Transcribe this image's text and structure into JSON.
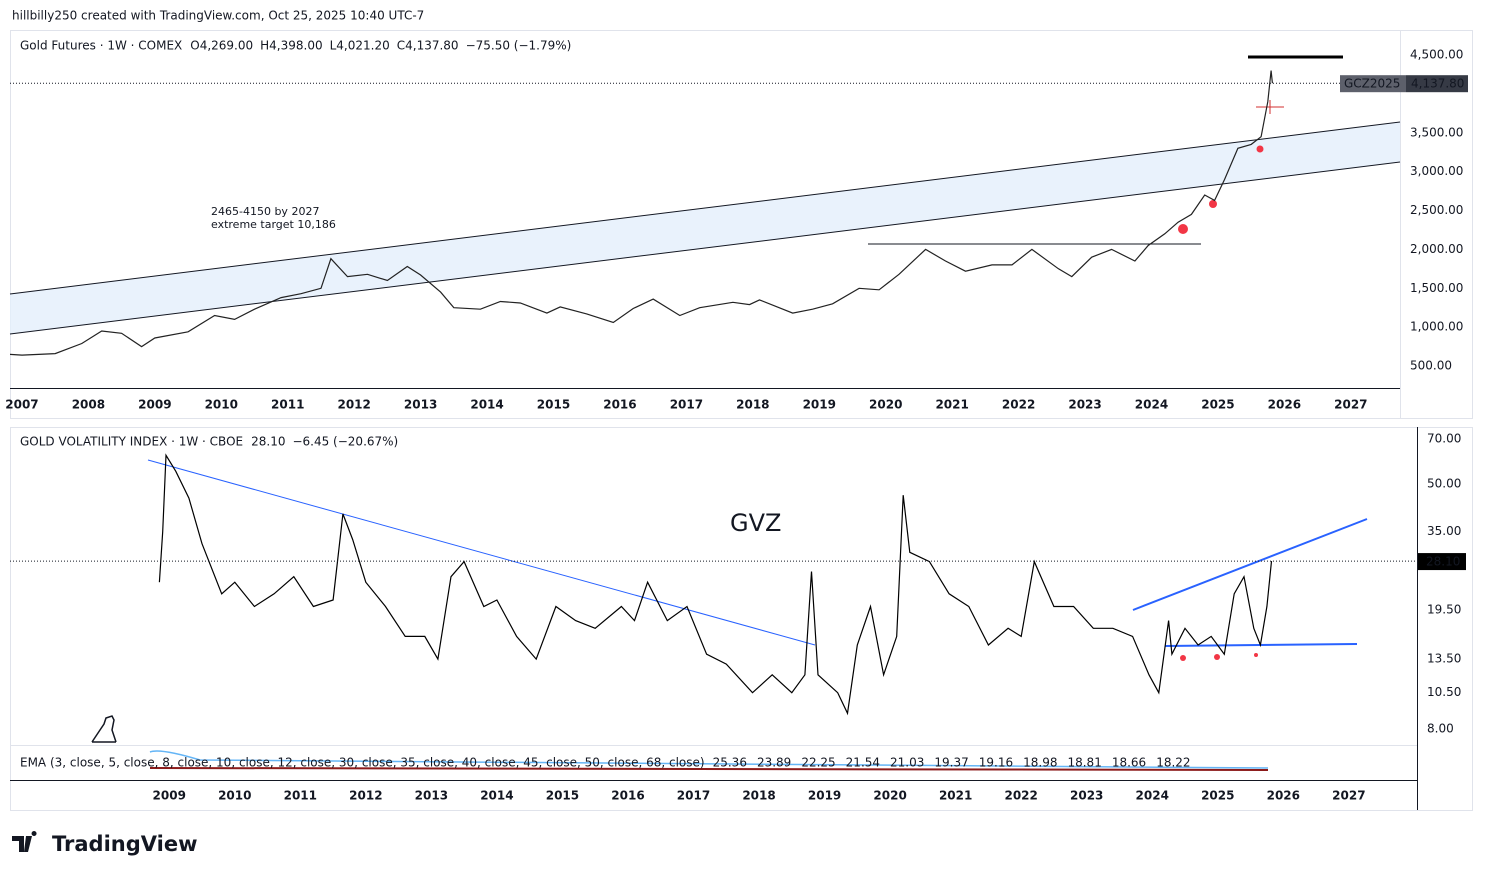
{
  "header": {
    "author_line": "hillbilly250 created with TradingView.com, Oct 25, 2025 10:40 UTC-7",
    "brand": "TradingView"
  },
  "chart_data": [
    {
      "type": "line",
      "title": "Gold Futures · 1W · COMEX",
      "legend_values": [
        "O4,269.00",
        "H4,398.00",
        "L4,021.20",
        "C4,137.80",
        "−75.50 (−1.79%)"
      ],
      "color": "#222222",
      "x": [
        2006.8,
        2007.0,
        2007.5,
        2007.9,
        2008.2,
        2008.5,
        2008.8,
        2009.0,
        2009.5,
        2009.9,
        2010.2,
        2010.5,
        2010.9,
        2011.2,
        2011.5,
        2011.65,
        2011.9,
        2012.2,
        2012.5,
        2012.8,
        2013.0,
        2013.3,
        2013.5,
        2013.9,
        2014.2,
        2014.5,
        2014.9,
        2015.1,
        2015.5,
        2015.9,
        2016.2,
        2016.5,
        2016.9,
        2017.2,
        2017.7,
        2017.95,
        2018.1,
        2018.6,
        2018.9,
        2019.2,
        2019.6,
        2019.9,
        2020.2,
        2020.6,
        2020.9,
        2021.2,
        2021.6,
        2021.9,
        2022.2,
        2022.6,
        2022.8,
        2023.1,
        2023.4,
        2023.75,
        2023.95,
        2024.2,
        2024.4,
        2024.6,
        2024.8,
        2024.95,
        2025.1,
        2025.3,
        2025.5,
        2025.65,
        2025.75,
        2025.8,
        2025.82
      ],
      "values": [
        650,
        640,
        660,
        790,
        950,
        920,
        750,
        860,
        940,
        1150,
        1100,
        1230,
        1380,
        1430,
        1500,
        1880,
        1650,
        1680,
        1600,
        1780,
        1670,
        1450,
        1250,
        1230,
        1330,
        1310,
        1180,
        1260,
        1170,
        1060,
        1240,
        1360,
        1150,
        1250,
        1320,
        1290,
        1350,
        1180,
        1230,
        1300,
        1500,
        1480,
        1680,
        2000,
        1850,
        1720,
        1800,
        1800,
        2000,
        1750,
        1650,
        1900,
        2000,
        1850,
        2050,
        2200,
        2350,
        2450,
        2700,
        2630,
        2900,
        3300,
        3350,
        3450,
        3900,
        4300,
        4137.8
      ],
      "xlim": [
        2006.82,
        2027.74
      ],
      "xticks": [
        2007,
        2008,
        2009,
        2010,
        2011,
        2012,
        2013,
        2014,
        2015,
        2016,
        2017,
        2018,
        2019,
        2020,
        2021,
        2022,
        2023,
        2024,
        2025,
        2026,
        2027
      ],
      "ylim": [
        217,
        4822
      ],
      "yticks": [
        {
          "value": 500,
          "label": "500.00"
        },
        {
          "value": 1000,
          "label": "1,000.00"
        },
        {
          "value": 1500,
          "label": "1,500.00"
        },
        {
          "value": 2000,
          "label": "2,000.00"
        },
        {
          "value": 2500,
          "label": "2,500.00"
        },
        {
          "value": 3000,
          "label": "3,000.00"
        },
        {
          "value": 3500,
          "label": "3,500.00"
        },
        {
          "value": 4500,
          "label": "4,500.00"
        }
      ],
      "last_label": {
        "symbol": "GCZ2025",
        "value": 4137.8,
        "label": "4,137.80"
      },
      "annotations": [
        "2465-4150 by 2027",
        "extreme target 10,186"
      ]
    },
    {
      "type": "line",
      "title": "GOLD VOLATILITY INDEX · 1W · CBOE",
      "legend_values": [
        "28.10",
        "−6.45 (−20.67%)"
      ],
      "color": "#000000",
      "log_scale": true,
      "x": [
        2008.85,
        2008.9,
        2008.95,
        2009.1,
        2009.3,
        2009.5,
        2009.8,
        2010.0,
        2010.3,
        2010.6,
        2010.9,
        2011.2,
        2011.5,
        2011.65,
        2011.8,
        2012.0,
        2012.3,
        2012.6,
        2012.9,
        2013.1,
        2013.3,
        2013.5,
        2013.8,
        2014.0,
        2014.3,
        2014.6,
        2014.9,
        2015.2,
        2015.5,
        2015.9,
        2016.1,
        2016.3,
        2016.6,
        2016.9,
        2017.2,
        2017.5,
        2017.9,
        2018.2,
        2018.5,
        2018.7,
        2018.8,
        2018.9,
        2019.2,
        2019.35,
        2019.5,
        2019.7,
        2019.9,
        2020.1,
        2020.2,
        2020.3,
        2020.6,
        2020.9,
        2021.2,
        2021.5,
        2021.8,
        2022.0,
        2022.2,
        2022.5,
        2022.8,
        2023.1,
        2023.4,
        2023.7,
        2023.95,
        2024.1,
        2024.25,
        2024.3,
        2024.5,
        2024.7,
        2024.9,
        2025.1,
        2025.25,
        2025.4,
        2025.55,
        2025.65,
        2025.75,
        2025.82
      ],
      "values": [
        24,
        35,
        62,
        55,
        45,
        32,
        22,
        24,
        20,
        22,
        25,
        20,
        21,
        40,
        33,
        24,
        20,
        16,
        16,
        13.5,
        25,
        28,
        20,
        21,
        16,
        13.5,
        20,
        18,
        17,
        20,
        18,
        24,
        18,
        20,
        14,
        13,
        10.5,
        12,
        10.5,
        12,
        26,
        12,
        10.5,
        9,
        15,
        20,
        12,
        16,
        46,
        30,
        28,
        22,
        20,
        15,
        17,
        16,
        28,
        20,
        20,
        17,
        17,
        16,
        12,
        10.5,
        18,
        14,
        17,
        15,
        16,
        14,
        22,
        25,
        17,
        15,
        20,
        28.1
      ],
      "xlim": [
        2006.57,
        2028.04
      ],
      "xticks": [
        2009,
        2010,
        2011,
        2012,
        2013,
        2014,
        2015,
        2016,
        2017,
        2018,
        2019,
        2020,
        2021,
        2022,
        2023,
        2024,
        2025,
        2026,
        2027
      ],
      "ylim": [
        7.1,
        76.6
      ],
      "yticks": [
        {
          "value": 8,
          "label": "8.00"
        },
        {
          "value": 10.5,
          "label": "10.50"
        },
        {
          "value": 13.5,
          "label": "13.50"
        },
        {
          "value": 19.5,
          "label": "19.50"
        },
        {
          "value": 35,
          "label": "35.00"
        },
        {
          "value": 50,
          "label": "50.00"
        },
        {
          "value": 70,
          "label": "70.00"
        }
      ],
      "last_label": {
        "value": 28.1,
        "label": "28.10"
      },
      "annotations": [
        "GVZ"
      ],
      "ema_legend": {
        "name": "EMA (3, close, 5, close, 8, close, 10, close, 12, close, 30, close, 35, close, 40, close, 45, close, 50, close, 68, close)",
        "values": [
          25.36,
          23.89,
          22.25,
          21.54,
          21.03,
          19.37,
          19.16,
          18.98,
          18.81,
          18.66,
          18.22
        ],
        "colors": [
          "#2196f3",
          "#2196f3",
          "#2196f3",
          "#2196f3",
          "#2196f3",
          "#c62828",
          "#c62828",
          "#c62828",
          "#c62828",
          "#c62828",
          "#000000"
        ]
      }
    }
  ]
}
